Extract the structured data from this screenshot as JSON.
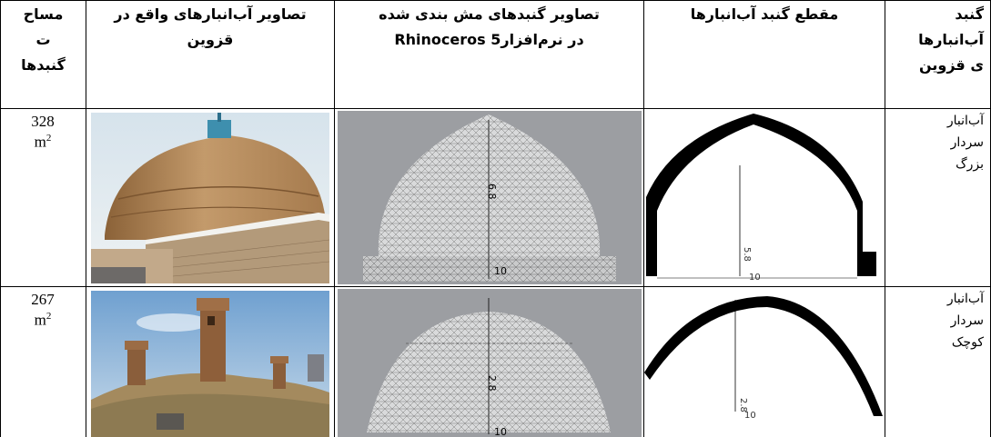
{
  "table": {
    "headers": {
      "area": [
        "مساح",
        "ت",
        "گنبدها"
      ],
      "real_photos": [
        "تصاویر آب‌انبارهای واقع در",
        "قزوین"
      ],
      "mesh": [
        "تصاویر گنبدهای مش بندی شده",
        "در نرم‌افزار5 Rhinoceros"
      ],
      "section": [
        "مقطع گنبد آب‌انبارها"
      ],
      "name": [
        "گنبد",
        "آب‌انبارها",
        "ی قزوین"
      ]
    },
    "rows": [
      {
        "area_value": "328",
        "area_unit": "m",
        "area_sup": "2",
        "name_lines": [
          "آب‌انبار",
          "سردار",
          "بزرگ"
        ],
        "mesh_height_label": "6.8",
        "mesh_width_label": "10",
        "section_height_label": "5.8",
        "section_width_label": "10"
      },
      {
        "area_value": "267",
        "area_unit": "m",
        "area_sup": "2",
        "name_lines": [
          "آب‌انبار",
          "سردار",
          "کوچک"
        ],
        "mesh_height_label": "2.8",
        "mesh_width_label": "10",
        "section_height_label": "2.8",
        "section_width_label": "10"
      }
    ]
  },
  "colors": {
    "sky": "#a9c8e6",
    "brick": "#b48a5c",
    "mesh_bg": "#9c9ea2",
    "mesh_dome": "#d9dadb",
    "section_fill": "#000000"
  }
}
